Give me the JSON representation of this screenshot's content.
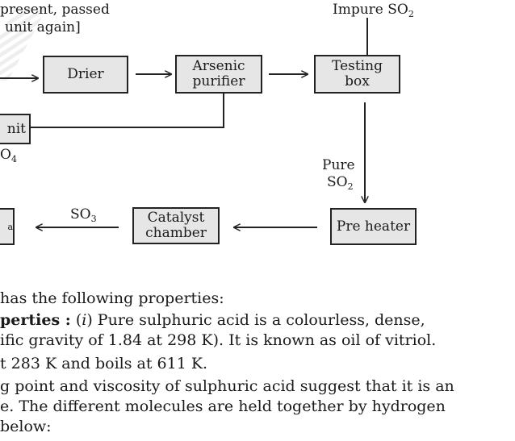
{
  "diagram": {
    "note": [
      "present, passed",
      "unit again]"
    ],
    "impure_label": {
      "text": "Impure SO",
      "sub": "2"
    },
    "nodes": {
      "drier": [
        "Drier"
      ],
      "arsenic_purifier": [
        "Arsenic",
        "purifier"
      ],
      "testing_box": [
        "Testing",
        "box"
      ],
      "unit_partial": [
        "nit"
      ],
      "unit_sub_partial": {
        "text": "O",
        "sub": "4"
      },
      "pre_heater": [
        "Pre heater"
      ],
      "catalyst_chamber": [
        "Catalyst",
        "chamber"
      ],
      "left_box_partial": [
        "a"
      ]
    },
    "pure_label": {
      "line1": "Pure",
      "line2": "SO",
      "sub": "2"
    },
    "so3_label": {
      "text": "SO",
      "sub": "3"
    }
  },
  "text": {
    "line1": "has the following properties:",
    "line2_bold": "perties :",
    "line2_italic": "i",
    "line2_rest": ") Pure sulphuric acid is a colourless, dense,",
    "line2_open": "(",
    "line3": "ific gravity of 1.84 at 298 K). It is known as oil of vitriol.",
    "line4": "t 283 K and boils at 611 K.",
    "line5": "g point and viscosity of sulphuric acid suggest that it is an",
    "line6": "e. The different molecules are held together by hydrogen",
    "line7": "below:"
  }
}
